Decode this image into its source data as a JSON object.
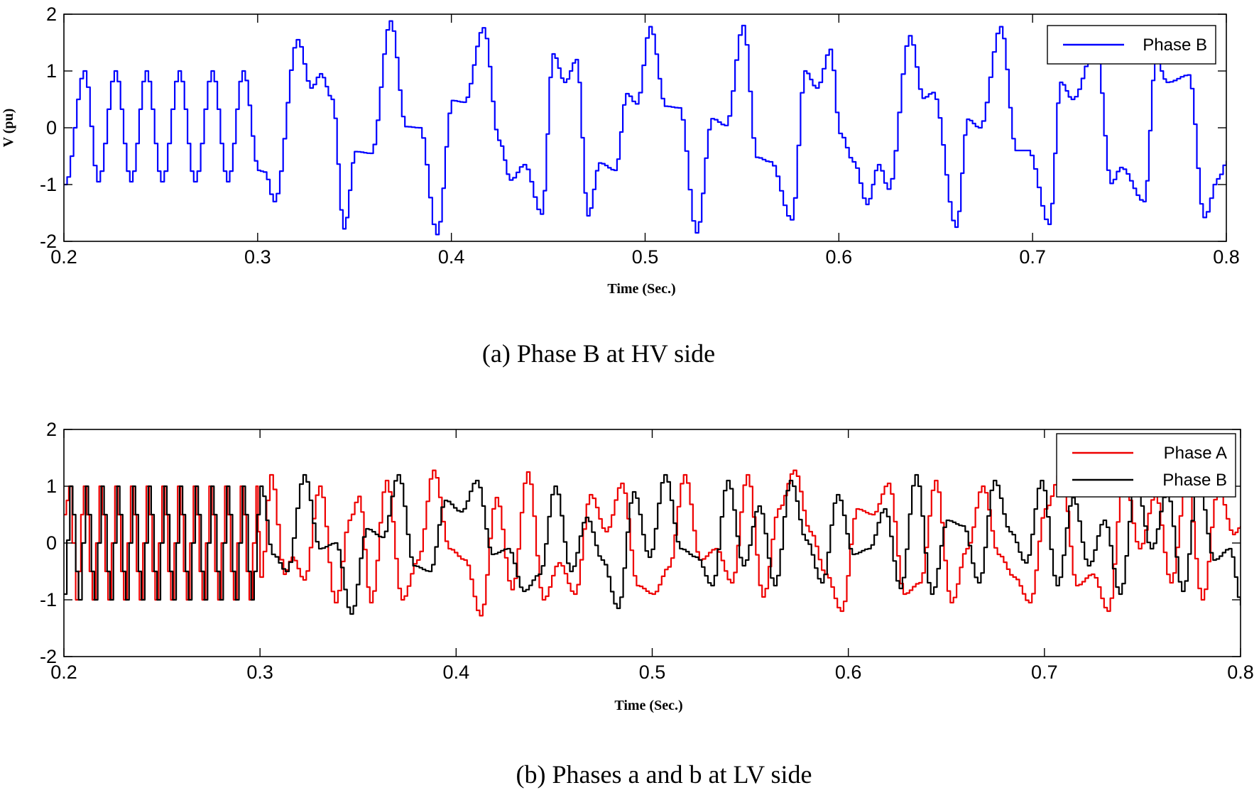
{
  "chart_data": [
    {
      "type": "line",
      "caption": "(a)   Phase B at HV side",
      "xlabel": "Time (Sec.)",
      "ylabel": "V (pu)",
      "xlim": [
        0.2,
        0.8
      ],
      "ylim": [
        -2,
        2
      ],
      "xticks": [
        "0.2",
        "0.3",
        "0.4",
        "0.5",
        "0.6",
        "0.7",
        "0.8"
      ],
      "yticks": [
        "2",
        "1",
        "0",
        "-1",
        "-2"
      ],
      "legend_position": "top-right",
      "grid": false,
      "series": [
        {
          "name": "Phase B",
          "color": "#0000ff",
          "x": [
            0.2,
            0.21,
            0.217,
            0.226,
            0.234,
            0.242,
            0.25,
            0.259,
            0.267,
            0.276,
            0.284,
            0.292,
            0.3,
            0.303,
            0.308,
            0.32,
            0.327,
            0.332,
            0.338,
            0.344,
            0.35,
            0.358,
            0.368,
            0.376,
            0.383,
            0.392,
            0.4,
            0.406,
            0.416,
            0.424,
            0.43,
            0.437,
            0.446,
            0.452,
            0.458,
            0.464,
            0.47,
            0.476,
            0.484,
            0.49,
            0.495,
            0.502,
            0.51,
            0.517,
            0.526,
            0.534,
            0.541,
            0.55,
            0.557,
            0.564,
            0.575,
            0.582,
            0.588,
            0.595,
            0.6,
            0.607,
            0.614,
            0.62,
            0.625,
            0.636,
            0.643,
            0.648,
            0.66,
            0.666,
            0.672,
            0.683,
            0.691,
            0.697,
            0.708,
            0.714,
            0.72,
            0.732,
            0.74,
            0.745,
            0.757,
            0.763,
            0.769,
            0.78,
            0.788,
            0.795,
            0.8
          ],
          "y": [
            -1.0,
            1.0,
            -0.95,
            1.0,
            -0.95,
            1.0,
            -0.95,
            1.0,
            -0.95,
            1.0,
            -0.95,
            1.0,
            -0.75,
            -0.78,
            -1.3,
            1.55,
            0.7,
            0.95,
            0.5,
            -1.78,
            -0.42,
            -0.45,
            1.88,
            0.02,
            0.0,
            -1.88,
            0.48,
            0.45,
            1.76,
            -0.22,
            -0.92,
            -0.65,
            -1.52,
            1.3,
            0.8,
            1.2,
            -1.55,
            -0.62,
            -0.75,
            0.6,
            0.42,
            1.78,
            0.38,
            0.35,
            -1.85,
            0.16,
            0.04,
            1.8,
            -0.52,
            -0.6,
            -1.62,
            1.0,
            0.7,
            1.38,
            -0.1,
            -0.6,
            -1.35,
            -0.65,
            -1.08,
            1.62,
            0.52,
            0.62,
            -1.75,
            0.15,
            0.0,
            1.78,
            -0.4,
            -0.4,
            -1.7,
            0.8,
            0.5,
            1.45,
            -0.98,
            -0.7,
            -1.3,
            1.2,
            0.8,
            0.93,
            -1.58,
            -0.9,
            -0.58
          ]
        }
      ]
    },
    {
      "type": "line",
      "caption": "(b) Phases a and b at LV side",
      "xlabel": "Time (Sec.)",
      "ylabel": "",
      "xlim": [
        0.2,
        0.8
      ],
      "ylim": [
        -2,
        2
      ],
      "xticks": [
        "0.2",
        "0.3",
        "0.4",
        "0.5",
        "0.6",
        "0.7",
        "0.8"
      ],
      "yticks": [
        "2",
        "1",
        "0",
        "-1",
        "-2"
      ],
      "legend_position": "top-right",
      "grid": false,
      "series": [
        {
          "name": "Phase A",
          "color": "#ee0000",
          "x": [
            0.2,
            0.2025,
            0.206,
            0.21,
            0.2145,
            0.218,
            0.2225,
            0.226,
            0.2305,
            0.234,
            0.2385,
            0.242,
            0.2465,
            0.25,
            0.2545,
            0.258,
            0.2625,
            0.266,
            0.2705,
            0.274,
            0.2785,
            0.282,
            0.2865,
            0.29,
            0.2945,
            0.298,
            0.3,
            0.305,
            0.312,
            0.316,
            0.322,
            0.33,
            0.338,
            0.345,
            0.35,
            0.356,
            0.364,
            0.372,
            0.38,
            0.388,
            0.396,
            0.404,
            0.412,
            0.42,
            0.428,
            0.436,
            0.444,
            0.452,
            0.46,
            0.468,
            0.476,
            0.484,
            0.492,
            0.5,
            0.508,
            0.516,
            0.524,
            0.532,
            0.54,
            0.548,
            0.556,
            0.564,
            0.572,
            0.58,
            0.588,
            0.596,
            0.604,
            0.612,
            0.62,
            0.628,
            0.636,
            0.644,
            0.652,
            0.66,
            0.668,
            0.676,
            0.684,
            0.692,
            0.7,
            0.708,
            0.716,
            0.724,
            0.732,
            0.74,
            0.748,
            0.756,
            0.764,
            0.772,
            0.78,
            0.788,
            0.796,
            0.8
          ],
          "y": [
            0.5,
            1.0,
            -1.0,
            1.0,
            -1.0,
            1.0,
            -1.0,
            1.0,
            -1.0,
            1.0,
            -1.0,
            1.0,
            -1.0,
            1.0,
            -1.0,
            1.0,
            -1.0,
            1.0,
            -1.0,
            1.0,
            -1.0,
            1.0,
            -1.0,
            1.0,
            -1.0,
            1.0,
            -0.6,
            1.2,
            -0.55,
            -0.25,
            -0.65,
            1.0,
            -1.05,
            0.4,
            0.82,
            -1.05,
            1.1,
            -1.0,
            -0.3,
            1.28,
            -0.1,
            -0.3,
            -1.28,
            0.8,
            -0.82,
            1.25,
            -1.0,
            -0.35,
            -0.9,
            0.85,
            0.2,
            1.05,
            -0.75,
            -0.9,
            -0.42,
            1.2,
            -0.3,
            -0.1,
            -0.7,
            1.2,
            -0.95,
            0.6,
            1.28,
            0.2,
            -0.55,
            -1.2,
            0.6,
            0.5,
            1.05,
            -0.9,
            -0.7,
            1.1,
            -1.05,
            -0.1,
            1.0,
            -0.2,
            -0.6,
            -1.05,
            0.6,
            1.25,
            -0.75,
            -0.55,
            -1.2,
            1.2,
            -0.1,
            0.85,
            -0.7,
            1.1,
            -1.0,
            0.95,
            0.15,
            0.3
          ]
        },
        {
          "name": "Phase B",
          "color": "#000000",
          "x": [
            0.2,
            0.203,
            0.2075,
            0.211,
            0.2155,
            0.219,
            0.2235,
            0.227,
            0.2315,
            0.235,
            0.2395,
            0.243,
            0.2475,
            0.251,
            0.2555,
            0.259,
            0.2635,
            0.267,
            0.2715,
            0.275,
            0.2795,
            0.283,
            0.2875,
            0.291,
            0.2955,
            0.3,
            0.306,
            0.313,
            0.322,
            0.33,
            0.338,
            0.346,
            0.354,
            0.362,
            0.37,
            0.378,
            0.386,
            0.394,
            0.402,
            0.41,
            0.418,
            0.426,
            0.434,
            0.442,
            0.45,
            0.458,
            0.466,
            0.474,
            0.482,
            0.49,
            0.498,
            0.506,
            0.514,
            0.522,
            0.53,
            0.538,
            0.546,
            0.554,
            0.562,
            0.57,
            0.578,
            0.586,
            0.594,
            0.602,
            0.61,
            0.618,
            0.626,
            0.634,
            0.642,
            0.65,
            0.658,
            0.666,
            0.674,
            0.682,
            0.69,
            0.698,
            0.706,
            0.714,
            0.722,
            0.73,
            0.738,
            0.746,
            0.754,
            0.762,
            0.77,
            0.778,
            0.786,
            0.794,
            0.8
          ],
          "y": [
            -0.9,
            1.0,
            -1.0,
            1.0,
            -1.0,
            1.0,
            -1.0,
            1.0,
            -1.0,
            1.0,
            -1.0,
            1.0,
            -1.0,
            1.0,
            -1.0,
            1.0,
            -1.0,
            1.0,
            -1.0,
            1.0,
            -1.0,
            1.0,
            -1.0,
            1.0,
            -1.0,
            1.0,
            -0.2,
            -0.5,
            1.2,
            -0.1,
            0.0,
            -1.25,
            0.25,
            0.1,
            1.2,
            -0.4,
            -0.5,
            0.75,
            0.55,
            1.1,
            -0.2,
            -0.1,
            -0.85,
            -0.55,
            1.0,
            -0.5,
            0.45,
            -0.3,
            -1.15,
            0.9,
            -0.25,
            1.2,
            -0.1,
            -0.25,
            -0.75,
            1.1,
            -0.4,
            0.65,
            -0.75,
            1.1,
            0.05,
            -0.7,
            0.85,
            -0.2,
            -0.1,
            0.6,
            -0.8,
            1.2,
            -0.9,
            0.4,
            0.3,
            -0.7,
            1.1,
            0.2,
            -0.35,
            1.1,
            -0.75,
            0.8,
            -0.4,
            0.4,
            -0.9,
            1.05,
            -0.1,
            0.9,
            -0.85,
            1.05,
            -0.3,
            -0.1,
            -1.1
          ]
        }
      ]
    }
  ]
}
